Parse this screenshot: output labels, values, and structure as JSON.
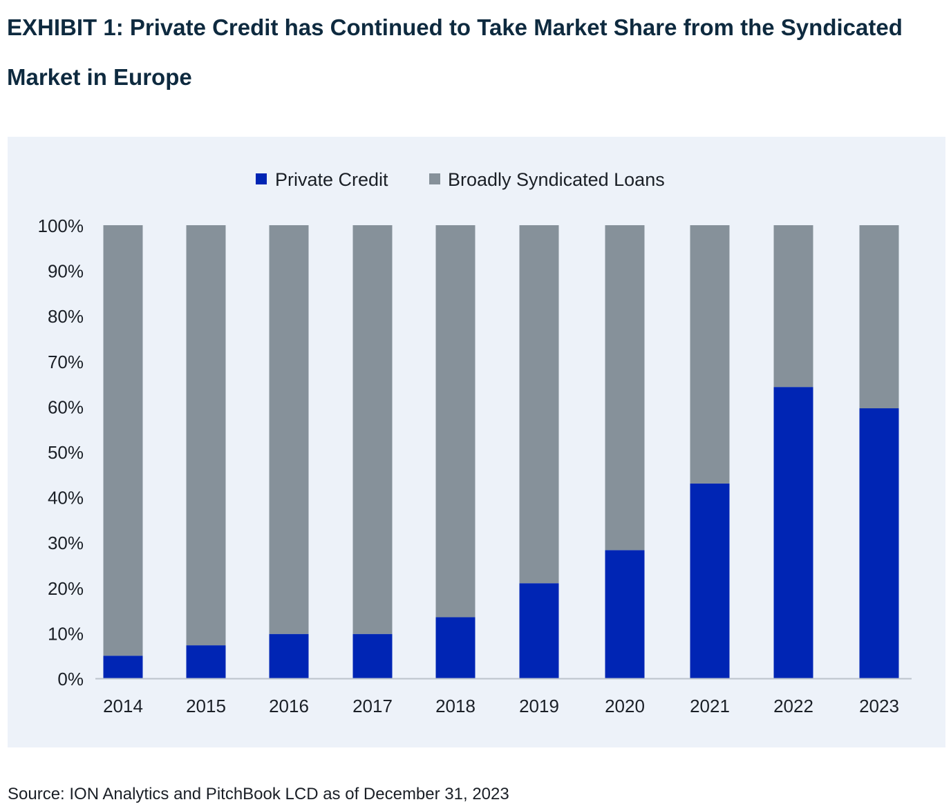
{
  "title": "EXHIBIT 1: Private Credit has Continued to Take Market Share from the Syndicated Market in Europe",
  "source": "Source: ION Analytics and PitchBook LCD as of December 31, 2023",
  "colors": {
    "private_credit": "#0025b4",
    "broadly_syndicated": "#86919a",
    "panel_background": "#edf2f9",
    "axis": "#bcc3cc",
    "text": "#1a1f26"
  },
  "chart_data": {
    "type": "bar",
    "stacked": true,
    "categories": [
      "2014",
      "2015",
      "2016",
      "2017",
      "2018",
      "2019",
      "2020",
      "2021",
      "2022",
      "2023"
    ],
    "series": [
      {
        "name": "Private Credit",
        "color": "#0025b4",
        "values": [
          5,
          7.3,
          9.8,
          9.8,
          13.5,
          21,
          28.3,
          43,
          64.3,
          59.6
        ]
      },
      {
        "name": "Broadly Syndicated Loans",
        "color": "#86919a",
        "values": [
          95,
          92.7,
          90.2,
          90.2,
          86.5,
          79,
          71.7,
          57,
          35.7,
          40.4
        ]
      }
    ],
    "y_ticks": [
      "0%",
      "10%",
      "20%",
      "30%",
      "40%",
      "50%",
      "60%",
      "70%",
      "80%",
      "90%",
      "100%"
    ],
    "ylim": [
      0,
      100
    ],
    "grid": false,
    "legend": "top-center"
  }
}
